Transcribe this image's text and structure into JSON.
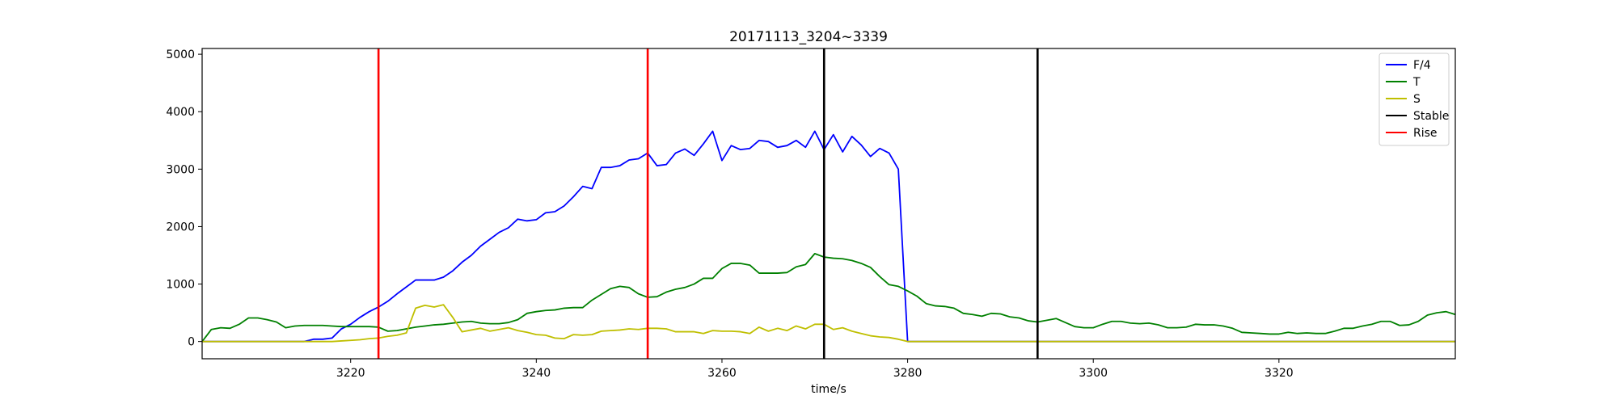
{
  "chart_data": {
    "type": "line",
    "title": "20171113_3204~3339",
    "xlabel": "time/s",
    "ylabel": "",
    "xlim": [
      3204,
      3339
    ],
    "ylim": [
      -300,
      5100
    ],
    "xticks": [
      3220,
      3240,
      3260,
      3280,
      3300,
      3320
    ],
    "yticks": [
      0,
      1000,
      2000,
      3000,
      4000,
      5000
    ],
    "grid": false,
    "legend_position": "top-right",
    "series": [
      {
        "name": "F/4",
        "color": "#0000ff",
        "x": [
          3204,
          3205,
          3206,
          3207,
          3208,
          3209,
          3210,
          3211,
          3212,
          3213,
          3214,
          3215,
          3216,
          3217,
          3218,
          3219,
          3220,
          3221,
          3222,
          3223,
          3224,
          3225,
          3226,
          3227,
          3228,
          3229,
          3230,
          3231,
          3232,
          3233,
          3234,
          3235,
          3236,
          3237,
          3238,
          3239,
          3240,
          3241,
          3242,
          3243,
          3244,
          3245,
          3246,
          3247,
          3248,
          3249,
          3250,
          3251,
          3252,
          3253,
          3254,
          3255,
          3256,
          3257,
          3258,
          3259,
          3260,
          3261,
          3262,
          3263,
          3264,
          3265,
          3266,
          3267,
          3268,
          3269,
          3270,
          3271,
          3272,
          3273,
          3274,
          3275,
          3276,
          3277,
          3278,
          3279,
          3280,
          3339
        ],
        "y": [
          0,
          0,
          0,
          0,
          0,
          0,
          0,
          0,
          0,
          0,
          0,
          0,
          40,
          40,
          60,
          220,
          300,
          420,
          520,
          600,
          700,
          830,
          950,
          1070,
          1070,
          1070,
          1120,
          1230,
          1380,
          1500,
          1660,
          1780,
          1900,
          1980,
          2130,
          2100,
          2120,
          2240,
          2260,
          2360,
          2520,
          2700,
          2660,
          3030,
          3030,
          3060,
          3160,
          3180,
          3280,
          3060,
          3080,
          3280,
          3350,
          3240,
          3440,
          3660,
          3150,
          3410,
          3340,
          3360,
          3500,
          3480,
          3380,
          3410,
          3500,
          3380,
          3660,
          3340,
          3600,
          3300,
          3570,
          3420,
          3220,
          3360,
          3280,
          3000,
          0,
          0
        ]
      },
      {
        "name": "T",
        "color": "#008000",
        "x": [
          3204,
          3205,
          3206,
          3207,
          3208,
          3209,
          3210,
          3211,
          3212,
          3213,
          3214,
          3215,
          3216,
          3217,
          3218,
          3219,
          3220,
          3221,
          3222,
          3223,
          3224,
          3225,
          3226,
          3227,
          3228,
          3229,
          3230,
          3231,
          3232,
          3233,
          3234,
          3235,
          3236,
          3237,
          3238,
          3239,
          3240,
          3241,
          3242,
          3243,
          3244,
          3245,
          3246,
          3247,
          3248,
          3249,
          3250,
          3251,
          3252,
          3253,
          3254,
          3255,
          3256,
          3257,
          3258,
          3259,
          3260,
          3261,
          3262,
          3263,
          3264,
          3265,
          3266,
          3267,
          3268,
          3269,
          3270,
          3271,
          3272,
          3273,
          3274,
          3275,
          3276,
          3277,
          3278,
          3279,
          3280,
          3281,
          3282,
          3283,
          3284,
          3285,
          3286,
          3287,
          3288,
          3289,
          3290,
          3291,
          3292,
          3293,
          3294,
          3295,
          3296,
          3297,
          3298,
          3299,
          3300,
          3301,
          3302,
          3303,
          3304,
          3305,
          3306,
          3307,
          3308,
          3309,
          3310,
          3311,
          3312,
          3313,
          3314,
          3315,
          3316,
          3317,
          3318,
          3319,
          3320,
          3321,
          3322,
          3323,
          3324,
          3325,
          3326,
          3327,
          3328,
          3329,
          3330,
          3331,
          3332,
          3333,
          3334,
          3335,
          3336,
          3337,
          3338,
          3339
        ],
        "y": [
          0,
          210,
          240,
          230,
          300,
          410,
          410,
          380,
          340,
          240,
          270,
          280,
          280,
          280,
          270,
          260,
          260,
          260,
          260,
          250,
          180,
          190,
          220,
          250,
          270,
          290,
          300,
          320,
          340,
          350,
          320,
          310,
          310,
          330,
          380,
          490,
          520,
          540,
          550,
          580,
          590,
          590,
          720,
          820,
          920,
          960,
          940,
          830,
          770,
          780,
          860,
          910,
          940,
          1000,
          1100,
          1100,
          1270,
          1360,
          1360,
          1330,
          1190,
          1190,
          1190,
          1200,
          1300,
          1340,
          1530,
          1470,
          1450,
          1440,
          1410,
          1360,
          1290,
          1130,
          990,
          960,
          880,
          790,
          660,
          620,
          610,
          580,
          490,
          470,
          440,
          490,
          480,
          430,
          410,
          360,
          340,
          370,
          400,
          330,
          260,
          240,
          240,
          300,
          350,
          350,
          320,
          310,
          320,
          290,
          240,
          240,
          250,
          300,
          290,
          290,
          270,
          230,
          160,
          150,
          140,
          130,
          130,
          160,
          140,
          150,
          140,
          140,
          180,
          230,
          230,
          270,
          300,
          350,
          350,
          280,
          290,
          350,
          460,
          500,
          520,
          470
        ]
      },
      {
        "name": "S",
        "color": "#bfbf00",
        "x": [
          3204,
          3205,
          3206,
          3207,
          3208,
          3209,
          3210,
          3211,
          3212,
          3213,
          3214,
          3215,
          3216,
          3217,
          3218,
          3219,
          3220,
          3221,
          3222,
          3223,
          3224,
          3225,
          3226,
          3227,
          3228,
          3229,
          3230,
          3231,
          3232,
          3233,
          3234,
          3235,
          3236,
          3237,
          3238,
          3239,
          3240,
          3241,
          3242,
          3243,
          3244,
          3245,
          3246,
          3247,
          3248,
          3249,
          3250,
          3251,
          3252,
          3253,
          3254,
          3255,
          3256,
          3257,
          3258,
          3259,
          3260,
          3261,
          3262,
          3263,
          3264,
          3265,
          3266,
          3267,
          3268,
          3269,
          3270,
          3271,
          3272,
          3273,
          3274,
          3275,
          3276,
          3277,
          3278,
          3279,
          3280,
          3339
        ],
        "y": [
          0,
          0,
          0,
          0,
          0,
          0,
          0,
          0,
          0,
          0,
          0,
          0,
          0,
          0,
          0,
          10,
          20,
          30,
          50,
          60,
          90,
          110,
          150,
          580,
          630,
          600,
          640,
          420,
          170,
          200,
          230,
          180,
          210,
          240,
          190,
          160,
          120,
          110,
          60,
          50,
          120,
          110,
          120,
          180,
          190,
          200,
          220,
          210,
          230,
          230,
          220,
          170,
          170,
          170,
          140,
          190,
          180,
          180,
          170,
          140,
          250,
          180,
          230,
          190,
          270,
          220,
          300,
          300,
          210,
          240,
          180,
          140,
          100,
          80,
          70,
          40,
          0,
          0
        ]
      }
    ],
    "vertical_lines": [
      {
        "label": "Rise",
        "x": 3223,
        "color": "#ff0000"
      },
      {
        "label": "Rise",
        "x": 3252,
        "color": "#ff0000"
      },
      {
        "label": "Stable",
        "x": 3271,
        "color": "#000000"
      },
      {
        "label": "Stable",
        "x": 3294,
        "color": "#000000"
      }
    ],
    "legend": [
      {
        "label": "F/4",
        "color": "#0000ff"
      },
      {
        "label": "T",
        "color": "#008000"
      },
      {
        "label": "S",
        "color": "#bfbf00"
      },
      {
        "label": "Stable",
        "color": "#000000"
      },
      {
        "label": "Rise",
        "color": "#ff0000"
      }
    ]
  }
}
